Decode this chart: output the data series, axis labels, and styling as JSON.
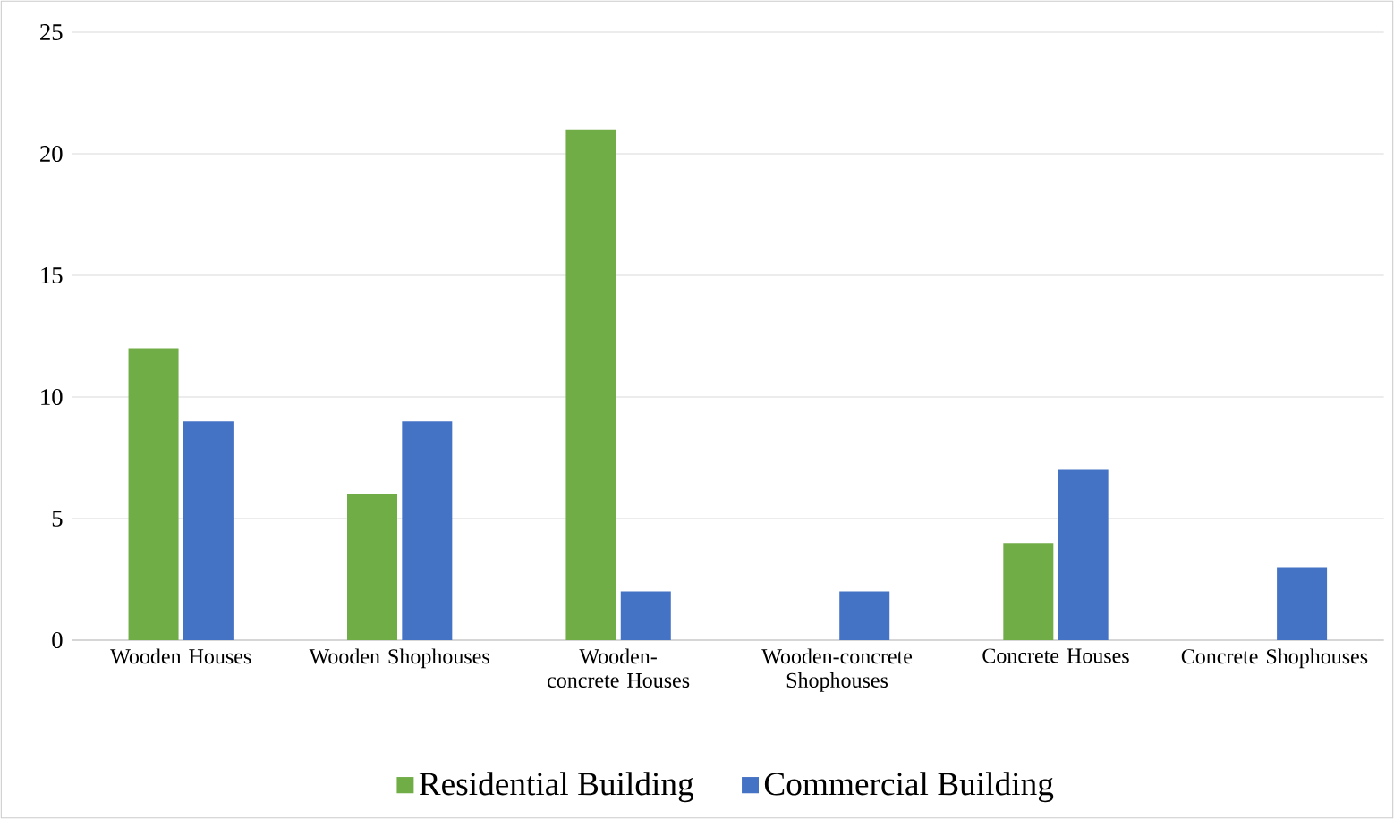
{
  "chart_data": {
    "type": "bar",
    "categories": [
      "Wooden Houses",
      "Wooden Shophouses",
      "Wooden-concrete Houses",
      "Wooden-concrete Shophouses",
      "Concrete Houses",
      "Concrete Shophouses"
    ],
    "series": [
      {
        "name": "Residential Building",
        "color": "#70ad47",
        "values": [
          12,
          6,
          21,
          null,
          4,
          null
        ]
      },
      {
        "name": "Commercial Building",
        "color": "#4472c4",
        "values": [
          9,
          9,
          2,
          2,
          7,
          3
        ]
      }
    ],
    "ylim": [
      0,
      25
    ],
    "yticks": [
      0,
      5,
      10,
      15,
      20,
      25
    ],
    "grid": "y",
    "legend": "bottom"
  }
}
